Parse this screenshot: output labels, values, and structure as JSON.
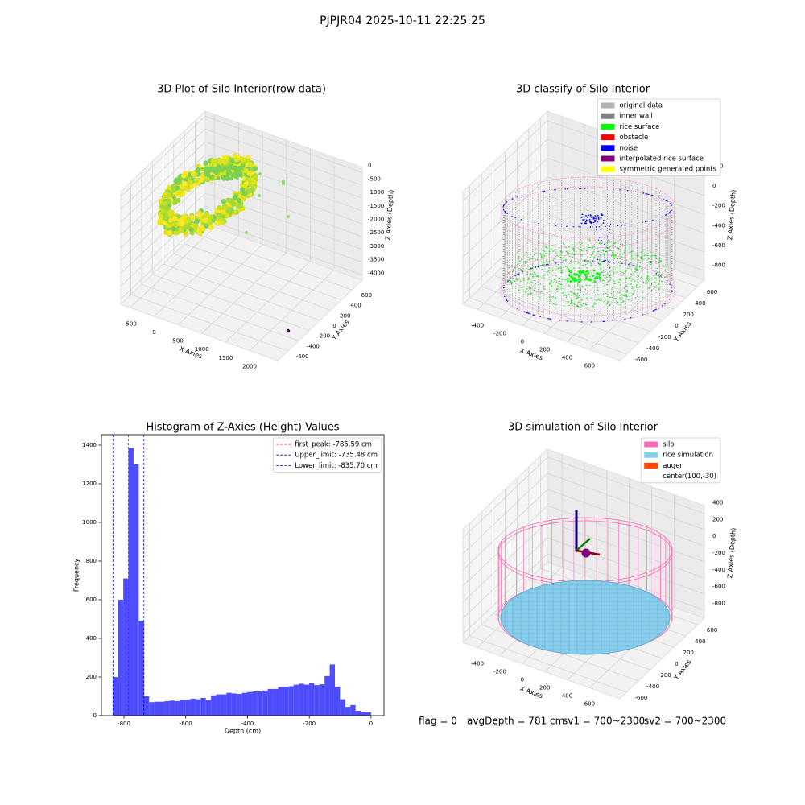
{
  "title": "PJPJR04 2025-10-11 22:25:25",
  "chart_data": [
    {
      "type": "scatter3d",
      "title": "3D Plot of Silo Interior(row data)",
      "x_label": "X Axies",
      "y_label": "Y Axies",
      "z_label": "Z Axies (Depth)",
      "xlim": [
        -700,
        2590
      ],
      "xticks": [
        -500,
        0,
        500,
        1000,
        1500,
        2000
      ],
      "ylim": [
        -790,
        790
      ],
      "yticks": [
        -600,
        -400,
        -200,
        0,
        200,
        400,
        600
      ],
      "zlim": [
        -4200,
        200
      ],
      "zticks": [
        -4000,
        -3500,
        -3000,
        -2500,
        -2000,
        -1500,
        -1000,
        -500,
        0
      ]
    },
    {
      "type": "classify3d",
      "title": "3D classify of Silo Interior",
      "x_label": "X Axies",
      "y_label": "Y Axies",
      "z_label": "Z Axies (Depth)",
      "xlim": [
        -530,
        870
      ],
      "xticks": [
        -400,
        -200,
        0,
        200,
        400,
        600
      ],
      "ylim": [
        -715,
        715
      ],
      "yticks": [
        -600,
        -400,
        -200,
        0,
        200,
        400,
        600
      ],
      "zlim": [
        -900,
        300
      ],
      "zticks": [
        -800,
        -600,
        -400,
        -200,
        0,
        200
      ],
      "legend_position": "upper right",
      "legend": [
        {
          "name": "original data",
          "color": "#b2b2b2"
        },
        {
          "name": "inner wall",
          "color": "#808080"
        },
        {
          "name": "rice surface",
          "color": "#00ff00"
        },
        {
          "name": "obstacle",
          "color": "#ff0000"
        },
        {
          "name": "noise",
          "color": "#0000ff"
        },
        {
          "name": "interpolated rice surface",
          "color": "#800080"
        },
        {
          "name": "symmetric generated points",
          "color": "#ffff00"
        }
      ]
    },
    {
      "type": "histogram",
      "title": "Histogram of Z-Axies (Height) Values",
      "x_label": "Depth (cm)",
      "y_label": "Frequency",
      "color": "#4d4dff",
      "bins": [
        -835.7,
        -819.0,
        -802.3,
        -785.6,
        -768.9,
        -752.1,
        -735.4,
        -718.7,
        -702.0,
        -685.3,
        -668.6,
        -651.9,
        -635.1,
        -618.4,
        -601.7,
        -585.0,
        -568.3,
        -551.6,
        -534.8,
        -518.1,
        -501.4,
        -484.7,
        -468.0,
        -451.3,
        -434.6,
        -417.9,
        -401.1,
        -384.4,
        -367.7,
        -351.0,
        -334.3,
        -317.6,
        -300.8,
        -284.1,
        -267.4,
        -250.7,
        -234.0,
        -217.3,
        -200.6,
        -183.8,
        -167.1,
        -150.4,
        -133.7,
        -117.0,
        -100.3,
        -83.6,
        -66.9,
        -50.1,
        -33.4,
        -16.7,
        0.0
      ],
      "values": [
        200,
        600,
        710,
        1385,
        1300,
        490,
        100,
        70,
        72,
        72,
        75,
        78,
        75,
        82,
        82,
        88,
        85,
        92,
        80,
        105,
        110,
        110,
        118,
        115,
        112,
        118,
        122,
        125,
        125,
        130,
        138,
        138,
        148,
        150,
        152,
        160,
        165,
        160,
        168,
        158,
        162,
        205,
        265,
        150,
        85,
        45,
        55,
        25,
        20,
        18
      ],
      "xlim": [
        -873,
        42
      ],
      "xticks": [
        -800,
        -600,
        -400,
        -200,
        0
      ],
      "ylim": [
        0,
        1454
      ],
      "yticks": [
        0,
        200,
        400,
        600,
        800,
        1000,
        1200,
        1400
      ],
      "legend_position": "upper right",
      "lines": [
        {
          "name": "first_peak: -785.59 cm",
          "value": -785.59,
          "color": "#ff0000"
        },
        {
          "name": "Upper_limit: -735.48 cm",
          "value": -735.48,
          "color": "#0000cc"
        },
        {
          "name": "Lower_limit: -835.70 cm",
          "value": -835.7,
          "color": "#0000ff"
        }
      ]
    },
    {
      "type": "simulation3d",
      "title": "3D simulation of Silo Interior",
      "x_label": "X Axies",
      "y_label": "Y Axies",
      "z_label": "Z Axies (Depth)",
      "xlim": [
        -530,
        870
      ],
      "xticks": [
        -400,
        -200,
        0,
        200,
        400,
        600
      ],
      "ylim": [
        -715,
        715
      ],
      "yticks": [
        -600,
        -400,
        -200,
        0,
        200,
        400,
        600
      ],
      "zlim": [
        -900,
        500
      ],
      "zticks": [
        -800,
        -600,
        -400,
        -200,
        0,
        200,
        400
      ],
      "legend_position": "upper right",
      "legend": [
        {
          "name": "silo",
          "color": "#ff69b4"
        },
        {
          "name": "rice simulation",
          "color": "#87ceeb"
        },
        {
          "name": "auger",
          "color": "#ff4500"
        },
        {
          "name": "center(100,-30)"
        }
      ]
    }
  ],
  "footer": [
    "flag = 0",
    "avgDepth = 781 cm",
    "sv1 = 700~2300",
    "sv2 = 700~2300"
  ]
}
